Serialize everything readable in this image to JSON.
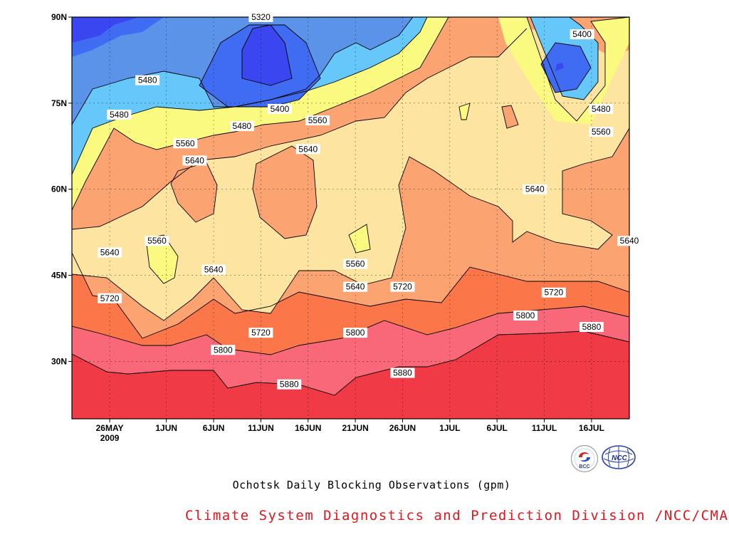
{
  "chart_data": {
    "type": "heatmap",
    "title": "Ochotsk Daily Blocking Observations (gpm)",
    "x_ticks": [
      "26MAY\n2009",
      "1JUN",
      "6JUN",
      "11JUN",
      "16JUN",
      "21JUN",
      "26JUN",
      "1JUL",
      "6JUL",
      "11JUL",
      "16JUL"
    ],
    "y_ticks": [
      "90N",
      "75N",
      "60N",
      "45N",
      "30N"
    ],
    "ylim": [
      20,
      90
    ],
    "xlim": [
      "2009-05-22",
      "2009-07-20"
    ],
    "grid": true,
    "levels": [
      5320,
      5400,
      5480,
      5560,
      5640,
      5720,
      5800,
      5880
    ],
    "level_colors": [
      "#3a46f0",
      "#3f6cf2",
      "#5a93e8",
      "#66c8fa",
      "#fafa80",
      "#fde4a0",
      "#fca372",
      "#fb7649",
      "#f96878",
      "#f03a46"
    ],
    "contour_labels": [
      {
        "text": "5320",
        "date": "2009-06-11",
        "lat": 90
      },
      {
        "text": "5480",
        "date": "2009-05-30",
        "lat": 79
      },
      {
        "text": "5400",
        "date": "2009-06-13",
        "lat": 74
      },
      {
        "text": "5480",
        "date": "2009-05-27",
        "lat": 73
      },
      {
        "text": "5480",
        "date": "2009-06-09",
        "lat": 71
      },
      {
        "text": "5560",
        "date": "2009-06-17",
        "lat": 72
      },
      {
        "text": "5560",
        "date": "2009-06-03",
        "lat": 68
      },
      {
        "text": "5640",
        "date": "2009-06-16",
        "lat": 67
      },
      {
        "text": "5640",
        "date": "2009-06-04",
        "lat": 65
      },
      {
        "text": "5560",
        "date": "2009-05-31",
        "lat": 51
      },
      {
        "text": "5640",
        "date": "2009-05-26",
        "lat": 49
      },
      {
        "text": "5640",
        "date": "2009-06-06",
        "lat": 46
      },
      {
        "text": "5560",
        "date": "2009-06-21",
        "lat": 47
      },
      {
        "text": "5640",
        "date": "2009-06-21",
        "lat": 43
      },
      {
        "text": "5720",
        "date": "2009-05-26",
        "lat": 41
      },
      {
        "text": "5720",
        "date": "2009-06-26",
        "lat": 43
      },
      {
        "text": "5720",
        "date": "2009-06-11",
        "lat": 35
      },
      {
        "text": "5800",
        "date": "2009-06-21",
        "lat": 35
      },
      {
        "text": "5800",
        "date": "2009-06-07",
        "lat": 32
      },
      {
        "text": "5880",
        "date": "2009-06-26",
        "lat": 28
      },
      {
        "text": "5880",
        "date": "2009-06-14",
        "lat": 26
      },
      {
        "text": "5400",
        "date": "2009-07-15",
        "lat": 87
      },
      {
        "text": "5480",
        "date": "2009-07-17",
        "lat": 74
      },
      {
        "text": "5560",
        "date": "2009-07-17",
        "lat": 70
      },
      {
        "text": "5640",
        "date": "2009-07-10",
        "lat": 60
      },
      {
        "text": "5640",
        "date": "2009-07-20",
        "lat": 51
      },
      {
        "text": "5720",
        "date": "2009-07-12",
        "lat": 42
      },
      {
        "text": "5800",
        "date": "2009-07-09",
        "lat": 38
      },
      {
        "text": "5880",
        "date": "2009-07-16",
        "lat": 36
      }
    ]
  },
  "footer": {
    "credit": "Climate System Diagnostics and Prediction Division /NCC/CMA",
    "logo_left_text": "BCC",
    "logo_right_text": "NCC"
  }
}
